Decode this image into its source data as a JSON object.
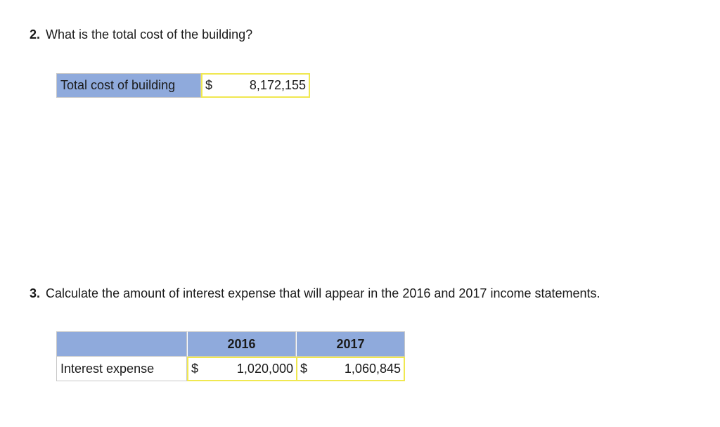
{
  "question2": {
    "number": "2.",
    "text": "What is the total cost of the building?",
    "row_label": "Total cost of building",
    "currency": "$",
    "value": "8,172,155"
  },
  "question3": {
    "number": "3.",
    "text": "Calculate the amount of interest expense that will appear in the 2016 and 2017 income statements.",
    "columns": [
      "",
      "2016",
      "2017"
    ],
    "row_label": "Interest expense",
    "cells": [
      {
        "currency": "$",
        "value": "1,020,000"
      },
      {
        "currency": "$",
        "value": "1,060,845"
      }
    ]
  },
  "colors": {
    "header_fill": "#8faadc",
    "answer_border": "#f0e850"
  }
}
